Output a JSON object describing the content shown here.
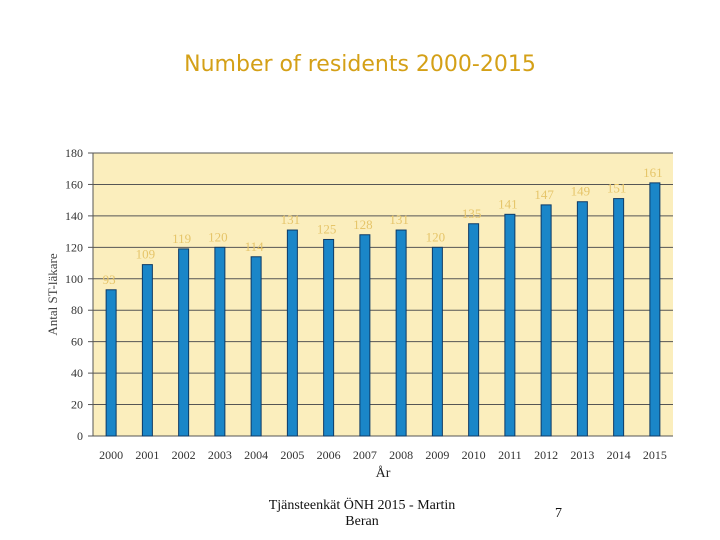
{
  "chart_data": {
    "type": "bar",
    "title": "Number of residents 2000-2015",
    "xlabel": "År",
    "ylabel": "Antal ST-läkare",
    "categories": [
      "2000",
      "2001",
      "2002",
      "2003",
      "2004",
      "2005",
      "2006",
      "2007",
      "2008",
      "2009",
      "2010",
      "2011",
      "2012",
      "2013",
      "2014",
      "2015"
    ],
    "values": [
      93,
      109,
      119,
      120,
      114,
      131,
      125,
      128,
      131,
      120,
      135,
      141,
      147,
      149,
      151,
      161
    ],
    "ylim": [
      0,
      180
    ],
    "yticks": [
      0,
      20,
      40,
      60,
      80,
      100,
      120,
      140,
      160,
      180
    ],
    "grid": true,
    "colors": {
      "bar": "#1a86c8",
      "bar_edge": "#0d3a66",
      "plot_bg": "#fbeebd",
      "label": "#e6c56a",
      "title": "#d4a017"
    }
  },
  "footer": {
    "source": "Tjänsteenkät ÖNH 2015 - Martin Beran",
    "page": "7"
  }
}
